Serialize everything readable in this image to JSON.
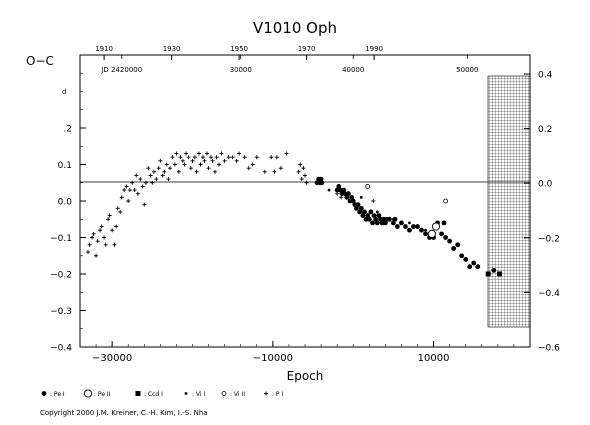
{
  "chart_data": {
    "type": "scatter",
    "title": "V1010  Oph",
    "ylabel": "O−C",
    "ylabel_unit": "d",
    "xlabel": "Epoch",
    "xlim": [
      -34000,
      22000
    ],
    "ylim": [
      -0.4,
      0.4
    ],
    "right_ylim": [
      -0.6,
      0.4
    ],
    "x_ticks": [
      -30000,
      -10000,
      10000
    ],
    "x_tick_labels": [
      "−30000",
      "−10000",
      "10000"
    ],
    "y_ticks": [
      0.2,
      0.1,
      0.0,
      -0.1,
      -0.2,
      -0.3,
      -0.4
    ],
    "y_tick_labels": [
      ".2",
      "0.1",
      "0.0",
      "−0.1",
      "−0.2",
      "−0.3",
      "−0.4"
    ],
    "right_y_ticks": [
      0.4,
      0.2,
      0.0,
      -0.2,
      -0.4,
      -0.6
    ],
    "right_y_tick_labels": [
      "0.4",
      "0.2",
      "0.0",
      "−0.2",
      "−0.4",
      "−0.6"
    ],
    "top_year_ticks": [
      {
        "label": "1910",
        "epoch": -31000
      },
      {
        "label": "1930",
        "epoch": -22600
      },
      {
        "label": "1950",
        "epoch": -14200
      },
      {
        "label": "1970",
        "epoch": -5800
      },
      {
        "label": "1990",
        "epoch": 2600
      }
    ],
    "top_jd_ticks": [
      {
        "label": "JD  2420000",
        "epoch": -28800
      },
      {
        "label": "30000",
        "epoch": -14000
      },
      {
        "label": "40000",
        "epoch": 0
      },
      {
        "label": "50000",
        "epoch": 14200
      }
    ],
    "grid": false,
    "zero_line": true,
    "legend": [
      {
        "symbol": "filled-circle",
        "label": ": Pe I"
      },
      {
        "symbol": "open-circle",
        "label": ": Pe II"
      },
      {
        "symbol": "filled-square",
        "label": ": Ccd I"
      },
      {
        "symbol": "small-dot",
        "label": ": Vi I"
      },
      {
        "symbol": "small-open-circle",
        "label": ": Vi II"
      },
      {
        "symbol": "plus",
        "label": ": P I"
      }
    ],
    "hatched_region_epoch": [
      18500,
      22000
    ],
    "series": [
      {
        "name": ": P I",
        "marker": "plus",
        "points": [
          [
            -33000,
            -0.14
          ],
          [
            -32800,
            -0.12
          ],
          [
            -32500,
            -0.1
          ],
          [
            -32300,
            -0.09
          ],
          [
            -32000,
            -0.15
          ],
          [
            -31800,
            -0.11
          ],
          [
            -31500,
            -0.08
          ],
          [
            -31300,
            -0.07
          ],
          [
            -31000,
            -0.1
          ],
          [
            -30800,
            -0.12
          ],
          [
            -30500,
            -0.05
          ],
          [
            -30300,
            -0.04
          ],
          [
            -30000,
            -0.08
          ],
          [
            -29700,
            -0.12
          ],
          [
            -29500,
            -0.07
          ],
          [
            -29300,
            -0.02
          ],
          [
            -29000,
            -0.03
          ],
          [
            -28800,
            0.01
          ],
          [
            -28500,
            0.03
          ],
          [
            -28200,
            0.04
          ],
          [
            -28000,
            0.0
          ],
          [
            -27800,
            0.03
          ],
          [
            -27500,
            0.05
          ],
          [
            -27200,
            0.03
          ],
          [
            -27000,
            0.07
          ],
          [
            -26800,
            0.02
          ],
          [
            -26500,
            0.06
          ],
          [
            -26200,
            0.04
          ],
          [
            -26000,
            -0.01
          ],
          [
            -25800,
            0.05
          ],
          [
            -25500,
            0.09
          ],
          [
            -25200,
            0.07
          ],
          [
            -25000,
            0.05
          ],
          [
            -24800,
            0.08
          ],
          [
            -24500,
            0.06
          ],
          [
            -24200,
            0.09
          ],
          [
            -24000,
            0.11
          ],
          [
            -23700,
            0.07
          ],
          [
            -23500,
            0.08
          ],
          [
            -23200,
            0.1
          ],
          [
            -23000,
            0.06
          ],
          [
            -22800,
            0.09
          ],
          [
            -22500,
            0.12
          ],
          [
            -22200,
            0.1
          ],
          [
            -22000,
            0.13
          ],
          [
            -21700,
            0.08
          ],
          [
            -21500,
            0.12
          ],
          [
            -21200,
            0.11
          ],
          [
            -21000,
            0.1
          ],
          [
            -20800,
            0.13
          ],
          [
            -20500,
            0.12
          ],
          [
            -20200,
            0.09
          ],
          [
            -20000,
            0.11
          ],
          [
            -19700,
            0.12
          ],
          [
            -19500,
            0.08
          ],
          [
            -19200,
            0.13
          ],
          [
            -19000,
            0.1
          ],
          [
            -18700,
            0.12
          ],
          [
            -18500,
            0.11
          ],
          [
            -18200,
            0.13
          ],
          [
            -18000,
            0.09
          ],
          [
            -17700,
            0.12
          ],
          [
            -17500,
            0.11
          ],
          [
            -17200,
            0.08
          ],
          [
            -17000,
            0.12
          ],
          [
            -16700,
            0.1
          ],
          [
            -16400,
            0.13
          ],
          [
            -16000,
            0.11
          ],
          [
            -15500,
            0.12
          ],
          [
            -15000,
            0.12
          ],
          [
            -14500,
            0.11
          ],
          [
            -14200,
            0.13
          ],
          [
            -13500,
            0.12
          ],
          [
            -13000,
            0.09
          ],
          [
            -12500,
            0.1
          ],
          [
            -12000,
            0.12
          ],
          [
            -11000,
            0.08
          ],
          [
            -10200,
            0.12
          ],
          [
            -9800,
            0.08
          ],
          [
            -9500,
            0.12
          ],
          [
            -9000,
            0.09
          ],
          [
            -8300,
            0.13
          ],
          [
            -6800,
            0.08
          ],
          [
            -6600,
            0.1
          ],
          [
            -6400,
            0.06
          ],
          [
            -6200,
            0.09
          ],
          [
            -6000,
            0.07
          ],
          [
            -5800,
            0.05
          ],
          [
            -2000,
            0.02
          ],
          [
            -1500,
            0.01
          ],
          [
            2500,
            0.0
          ]
        ]
      },
      {
        "name": ": Pe I",
        "marker": "filled-circle",
        "points": [
          [
            -4500,
            0.05
          ],
          [
            -4300,
            0.06
          ],
          [
            -4100,
            0.05
          ],
          [
            -4000,
            0.06
          ],
          [
            -3900,
            0.05
          ],
          [
            -2000,
            0.03
          ],
          [
            -1800,
            0.04
          ],
          [
            -1600,
            0.03
          ],
          [
            -1400,
            0.02
          ],
          [
            -1200,
            0.03
          ],
          [
            -1000,
            0.02
          ],
          [
            -800,
            0.01
          ],
          [
            -600,
            0.02
          ],
          [
            -400,
            0.0
          ],
          [
            -200,
            0.01
          ],
          [
            0,
            0.0
          ],
          [
            200,
            -0.01
          ],
          [
            400,
            -0.02
          ],
          [
            600,
            -0.01
          ],
          [
            800,
            -0.03
          ],
          [
            1000,
            -0.02
          ],
          [
            1200,
            -0.04
          ],
          [
            1400,
            -0.03
          ],
          [
            1600,
            -0.05
          ],
          [
            1800,
            -0.04
          ],
          [
            2000,
            -0.05
          ],
          [
            2200,
            -0.03
          ],
          [
            2400,
            -0.06
          ],
          [
            2600,
            -0.04
          ],
          [
            2800,
            -0.05
          ],
          [
            3000,
            -0.06
          ],
          [
            3200,
            -0.04
          ],
          [
            3400,
            -0.05
          ],
          [
            3600,
            -0.06
          ],
          [
            3800,
            -0.05
          ],
          [
            4000,
            -0.06
          ],
          [
            4200,
            -0.05
          ],
          [
            4500,
            -0.05
          ],
          [
            5000,
            -0.06
          ],
          [
            5200,
            -0.05
          ],
          [
            5500,
            -0.07
          ],
          [
            6000,
            -0.06
          ],
          [
            6500,
            -0.07
          ],
          [
            7000,
            -0.08
          ],
          [
            7500,
            -0.07
          ],
          [
            8000,
            -0.07
          ],
          [
            8500,
            -0.08
          ],
          [
            9000,
            -0.09
          ],
          [
            9500,
            -0.1
          ],
          [
            10000,
            -0.1
          ],
          [
            10500,
            -0.06
          ],
          [
            11000,
            -0.09
          ],
          [
            11300,
            -0.06
          ],
          [
            11500,
            -0.1
          ],
          [
            12000,
            -0.11
          ],
          [
            12500,
            -0.13
          ],
          [
            13000,
            -0.12
          ],
          [
            13500,
            -0.15
          ],
          [
            14000,
            -0.16
          ],
          [
            14500,
            -0.18
          ],
          [
            15000,
            -0.17
          ],
          [
            15500,
            -0.18
          ],
          [
            17500,
            -0.19
          ]
        ]
      },
      {
        "name": ": Pe II",
        "marker": "open-circle",
        "points": [
          [
            9800,
            -0.09
          ],
          [
            10300,
            -0.07
          ]
        ]
      },
      {
        "name": ": Ccd I",
        "marker": "filled-square",
        "points": [
          [
            16800,
            -0.2
          ],
          [
            18200,
            -0.2
          ]
        ]
      },
      {
        "name": ": Vi I",
        "marker": "small-dot",
        "points": [
          [
            -3000,
            0.03
          ],
          [
            1000,
            0.01
          ],
          [
            3000,
            -0.03
          ],
          [
            5000,
            -0.05
          ],
          [
            7000,
            -0.06
          ],
          [
            9000,
            -0.08
          ]
        ]
      },
      {
        "name": ": Vi II",
        "marker": "small-open-circle",
        "points": [
          [
            1800,
            0.04
          ],
          [
            11500,
            0.0
          ]
        ]
      }
    ]
  },
  "footer": {
    "copyright": "Copyright 2000 J.M. Kreiner, C.-H. Kim, I.-S. Nha"
  }
}
